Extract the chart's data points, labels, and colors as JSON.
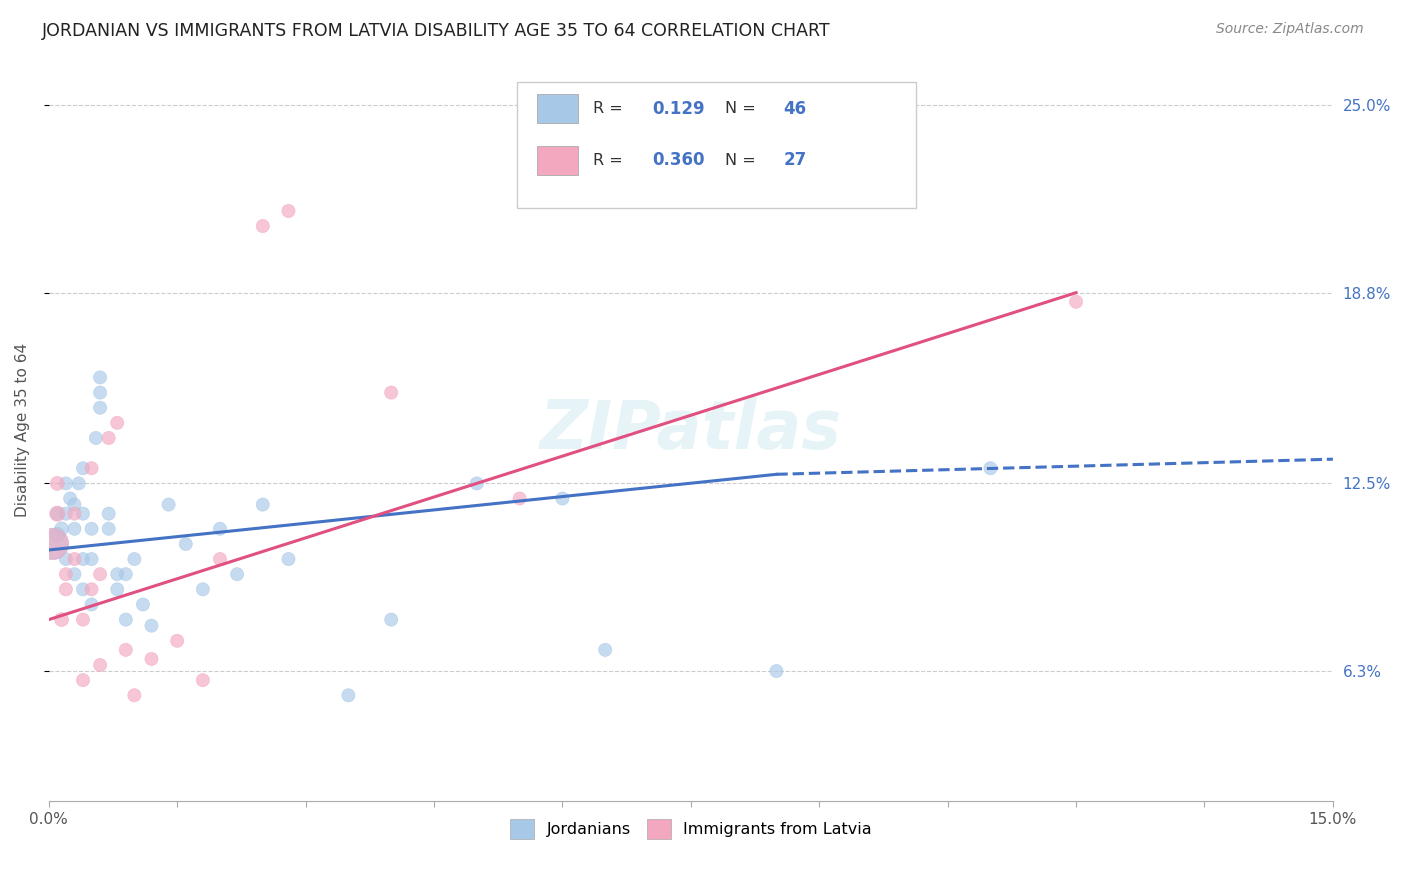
{
  "title": "JORDANIAN VS IMMIGRANTS FROM LATVIA DISABILITY AGE 35 TO 64 CORRELATION CHART",
  "source": "Source: ZipAtlas.com",
  "ylabel": "Disability Age 35 to 64",
  "xlim": [
    0.0,
    0.15
  ],
  "ylim": [
    0.02,
    0.265
  ],
  "ytick_labels_right": [
    "25.0%",
    "18.8%",
    "12.5%",
    "6.3%"
  ],
  "ytick_values_right": [
    0.25,
    0.188,
    0.125,
    0.063
  ],
  "watermark": "ZIPatlas",
  "blue_color": "#A8C8E8",
  "pink_color": "#F4A8C0",
  "blue_line_color": "#4472C4",
  "pink_line_color": "#E05080",
  "legend_R_blue": "0.129",
  "legend_N_blue": "46",
  "legend_R_pink": "0.360",
  "legend_N_pink": "27",
  "jordanians_x": [
    0.0005,
    0.001,
    0.001,
    0.0015,
    0.002,
    0.002,
    0.002,
    0.0025,
    0.003,
    0.003,
    0.003,
    0.0035,
    0.004,
    0.004,
    0.004,
    0.004,
    0.005,
    0.005,
    0.005,
    0.0055,
    0.006,
    0.006,
    0.006,
    0.007,
    0.007,
    0.008,
    0.008,
    0.009,
    0.009,
    0.01,
    0.011,
    0.012,
    0.014,
    0.016,
    0.018,
    0.02,
    0.022,
    0.025,
    0.028,
    0.035,
    0.04,
    0.05,
    0.06,
    0.065,
    0.085,
    0.11
  ],
  "jordanians_y": [
    0.105,
    0.108,
    0.115,
    0.11,
    0.1,
    0.115,
    0.125,
    0.12,
    0.095,
    0.11,
    0.118,
    0.125,
    0.09,
    0.1,
    0.115,
    0.13,
    0.085,
    0.1,
    0.11,
    0.14,
    0.155,
    0.15,
    0.16,
    0.11,
    0.115,
    0.09,
    0.095,
    0.08,
    0.095,
    0.1,
    0.085,
    0.078,
    0.118,
    0.105,
    0.09,
    0.11,
    0.095,
    0.118,
    0.1,
    0.055,
    0.08,
    0.125,
    0.12,
    0.07,
    0.063,
    0.13
  ],
  "latvia_x": [
    0.0005,
    0.001,
    0.001,
    0.0015,
    0.002,
    0.002,
    0.003,
    0.003,
    0.004,
    0.004,
    0.005,
    0.005,
    0.006,
    0.006,
    0.007,
    0.008,
    0.009,
    0.01,
    0.012,
    0.015,
    0.018,
    0.02,
    0.025,
    0.028,
    0.04,
    0.055,
    0.12
  ],
  "latvia_y": [
    0.105,
    0.115,
    0.125,
    0.08,
    0.09,
    0.095,
    0.1,
    0.115,
    0.06,
    0.08,
    0.09,
    0.13,
    0.065,
    0.095,
    0.14,
    0.145,
    0.07,
    0.055,
    0.067,
    0.073,
    0.06,
    0.1,
    0.21,
    0.215,
    0.155,
    0.12,
    0.185
  ],
  "jordan_marker_sizes": [
    500,
    120,
    100,
    100,
    90,
    90,
    90,
    90,
    90,
    90,
    90,
    90,
    90,
    90,
    90,
    90,
    90,
    90,
    90,
    90,
    90,
    90,
    90,
    90,
    90,
    90,
    90,
    90,
    90,
    90,
    90,
    90,
    90,
    90,
    90,
    90,
    90,
    90,
    90,
    90,
    90,
    90,
    90,
    90,
    90,
    90
  ],
  "latvia_marker_sizes": [
    500,
    120,
    100,
    100,
    90,
    90,
    90,
    90,
    90,
    90,
    90,
    90,
    90,
    90,
    90,
    90,
    90,
    90,
    90,
    90,
    90,
    90,
    90,
    90,
    90,
    90,
    90
  ]
}
